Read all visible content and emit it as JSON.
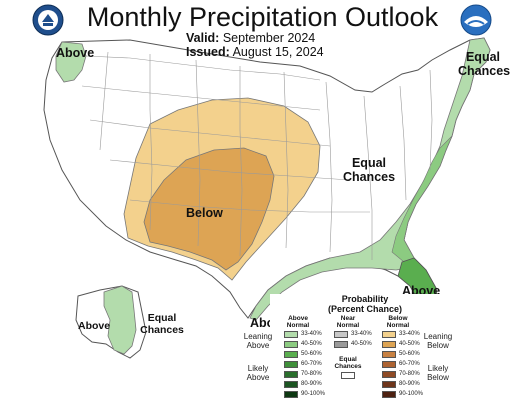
{
  "header": {
    "title": "Monthly Precipitation Outlook",
    "valid_label": "Valid:",
    "valid_value": "September 2024",
    "issued_label": "Issued:",
    "issued_value": "August 15, 2024",
    "left_logo": "noaa-dept-commerce-seal",
    "right_logo": "noaa-logo"
  },
  "map_labels": {
    "northwest": "Above",
    "northeast_line1": "Equal",
    "northeast_line2": "Chances",
    "central_line1": "Equal",
    "central_line2": "Chances",
    "southwest": "Below",
    "florida": "Above",
    "gulf": "Above",
    "alaska_left": "Above",
    "alaska_ec_line1": "Equal",
    "alaska_ec_line2": "Chances"
  },
  "legend": {
    "title_line1": "Probability",
    "title_line2": "(Percent Chance)",
    "col_above_line1": "Above",
    "col_above_line2": "Normal",
    "col_near_line1": "Near",
    "col_near_line2": "Normal",
    "col_below_line1": "Below",
    "col_below_line2": "Normal",
    "leaning_above_line1": "Leaning",
    "leaning_above_line2": "Above",
    "likely_above_line1": "Likely",
    "likely_above_line2": "Above",
    "leaning_below_line1": "Leaning",
    "leaning_below_line2": "Below",
    "likely_below_line1": "Likely",
    "likely_below_line2": "Below",
    "ec_line1": "Equal",
    "ec_line2": "Chances",
    "above_ranges": [
      "33-40%",
      "40-50%",
      "50-60%",
      "60-70%",
      "70-80%",
      "80-90%",
      "90-100%"
    ],
    "near_ranges": [
      "33-40%",
      "40-50%"
    ],
    "below_ranges": [
      "33-40%",
      "40-50%",
      "50-60%",
      "60-70%",
      "70-80%",
      "80-90%",
      "90-100%"
    ],
    "above_colors": [
      "#b3dcac",
      "#8ccb81",
      "#5aae4f",
      "#3f8f3a",
      "#2a6f2d",
      "#1c5522",
      "#0d3812"
    ],
    "near_colors": [
      "#c8c8c8",
      "#9a9a9a"
    ],
    "below_colors": [
      "#f3d18d",
      "#dda454",
      "#c88142",
      "#ad6332",
      "#8e4a25",
      "#6e351b",
      "#4d2111"
    ]
  },
  "colors": {
    "above_33_40": "#b3dcac",
    "above_40_50": "#8ccb81",
    "above_50_60": "#5aae4f",
    "below_33_40": "#f3d18d",
    "below_40_50": "#dda454",
    "boundary": "#777777",
    "state_lines": "#9a9a9a"
  }
}
